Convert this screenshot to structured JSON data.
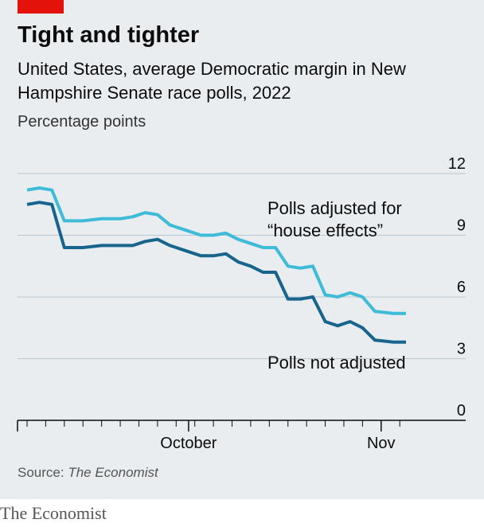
{
  "header": {
    "title": "Tight and tighter",
    "subtitle": "United States, average Democratic margin in New Hampshire Senate race polls, 2022",
    "unit": "Percentage points"
  },
  "footer": {
    "source_prefix": "Source: ",
    "source_name": "The Economist",
    "brand": "The Economist"
  },
  "colors": {
    "accent_red": "#e3120b",
    "adjusted": "#3ebbd6",
    "not_adjusted": "#17648d",
    "grid": "#b7c6cf",
    "background": "#e9edf0"
  },
  "chart_data": {
    "type": "line",
    "x_axis": {
      "range": [
        "2022-09-05",
        "2022-11-05"
      ],
      "labels": [
        {
          "date": "2022-10-01",
          "label": "October"
        },
        {
          "date": "2022-11-01",
          "label": "Nov"
        }
      ]
    },
    "y_axis": {
      "range": [
        0,
        12
      ],
      "ticks": [
        0,
        3,
        6,
        9,
        12
      ],
      "grid": true,
      "side": "right"
    },
    "series": [
      {
        "name": "Polls adjusted for “house effects”",
        "label_lines": [
          "Polls adjusted for",
          "“house effects”"
        ],
        "points": [
          [
            "2022-09-05",
            11.2
          ],
          [
            "2022-09-07",
            11.3
          ],
          [
            "2022-09-09",
            11.2
          ],
          [
            "2022-09-11",
            9.7
          ],
          [
            "2022-09-14",
            9.7
          ],
          [
            "2022-09-17",
            9.8
          ],
          [
            "2022-09-20",
            9.8
          ],
          [
            "2022-09-22",
            9.9
          ],
          [
            "2022-09-24",
            10.1
          ],
          [
            "2022-09-26",
            10.0
          ],
          [
            "2022-09-28",
            9.5
          ],
          [
            "2022-10-01",
            9.2
          ],
          [
            "2022-10-03",
            9.0
          ],
          [
            "2022-10-05",
            9.0
          ],
          [
            "2022-10-07",
            9.1
          ],
          [
            "2022-10-09",
            8.8
          ],
          [
            "2022-10-11",
            8.6
          ],
          [
            "2022-10-13",
            8.4
          ],
          [
            "2022-10-15",
            8.4
          ],
          [
            "2022-10-17",
            7.5
          ],
          [
            "2022-10-19",
            7.4
          ],
          [
            "2022-10-21",
            7.5
          ],
          [
            "2022-10-23",
            6.1
          ],
          [
            "2022-10-25",
            6.0
          ],
          [
            "2022-10-27",
            6.2
          ],
          [
            "2022-10-29",
            6.0
          ],
          [
            "2022-10-31",
            5.3
          ],
          [
            "2022-11-03",
            5.2
          ],
          [
            "2022-11-05",
            5.2
          ]
        ]
      },
      {
        "name": "Polls not adjusted",
        "label_lines": [
          "Polls not adjusted"
        ],
        "points": [
          [
            "2022-09-05",
            10.5
          ],
          [
            "2022-09-07",
            10.6
          ],
          [
            "2022-09-09",
            10.5
          ],
          [
            "2022-09-11",
            8.4
          ],
          [
            "2022-09-14",
            8.4
          ],
          [
            "2022-09-17",
            8.5
          ],
          [
            "2022-09-20",
            8.5
          ],
          [
            "2022-09-22",
            8.5
          ],
          [
            "2022-09-24",
            8.7
          ],
          [
            "2022-09-26",
            8.8
          ],
          [
            "2022-09-28",
            8.5
          ],
          [
            "2022-10-01",
            8.2
          ],
          [
            "2022-10-03",
            8.0
          ],
          [
            "2022-10-05",
            8.0
          ],
          [
            "2022-10-07",
            8.1
          ],
          [
            "2022-10-09",
            7.7
          ],
          [
            "2022-10-11",
            7.5
          ],
          [
            "2022-10-13",
            7.2
          ],
          [
            "2022-10-15",
            7.2
          ],
          [
            "2022-10-17",
            5.9
          ],
          [
            "2022-10-19",
            5.9
          ],
          [
            "2022-10-21",
            6.0
          ],
          [
            "2022-10-23",
            4.8
          ],
          [
            "2022-10-25",
            4.6
          ],
          [
            "2022-10-27",
            4.8
          ],
          [
            "2022-10-29",
            4.5
          ],
          [
            "2022-10-31",
            3.9
          ],
          [
            "2022-11-03",
            3.8
          ],
          [
            "2022-11-05",
            3.8
          ]
        ]
      }
    ]
  }
}
